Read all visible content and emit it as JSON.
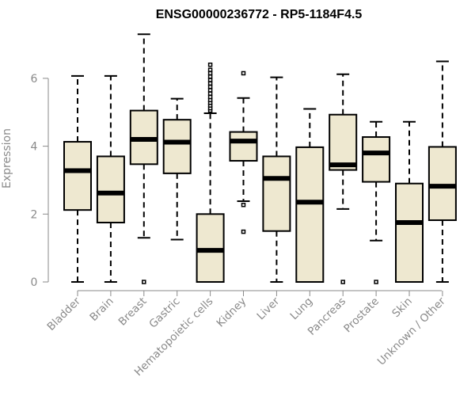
{
  "chart_data": {
    "type": "box",
    "title": "ENSG00000236772 - RP5-1184F4.5",
    "xlabel": "",
    "ylabel": "Expression",
    "ylim": [
      0,
      7.3
    ],
    "yticks": [
      0,
      2,
      4,
      6
    ],
    "grid": false,
    "box_color": "#EEE8D0",
    "axis_color": "#8a8a8a",
    "categories": [
      "Bladder",
      "Brain",
      "Breast",
      "Gastric",
      "Hematopoietic cells",
      "Kidney",
      "Liver",
      "Lung",
      "Pancreas",
      "Prostate",
      "Skin",
      "Unknown / Other"
    ],
    "boxes": [
      {
        "min": 0.0,
        "q1": 2.12,
        "median": 3.28,
        "q3": 4.13,
        "max": 6.07,
        "outliers": []
      },
      {
        "min": 0.0,
        "q1": 1.75,
        "median": 2.62,
        "q3": 3.7,
        "max": 6.07,
        "outliers": []
      },
      {
        "min": 1.3,
        "q1": 3.47,
        "median": 4.2,
        "q3": 5.05,
        "max": 7.3,
        "outliers": [
          0.0
        ]
      },
      {
        "min": 1.25,
        "q1": 3.2,
        "median": 4.12,
        "q3": 4.78,
        "max": 5.4,
        "outliers": []
      },
      {
        "min": 0.0,
        "q1": 0.0,
        "median": 0.93,
        "q3": 2.0,
        "max": 4.97,
        "outliers": [
          5.05,
          5.12,
          5.2,
          5.28,
          5.36,
          5.45,
          5.55,
          5.65,
          5.75,
          5.85,
          5.95,
          6.05,
          6.15,
          6.25,
          6.4
        ]
      },
      {
        "min": 2.38,
        "q1": 3.57,
        "median": 4.15,
        "q3": 4.42,
        "max": 5.42,
        "outliers": [
          6.15,
          2.27,
          1.48
        ]
      },
      {
        "min": 0.0,
        "q1": 1.5,
        "median": 3.05,
        "q3": 3.7,
        "max": 6.03,
        "outliers": []
      },
      {
        "min": 0.0,
        "q1": 0.0,
        "median": 2.35,
        "q3": 3.97,
        "max": 5.1,
        "outliers": []
      },
      {
        "min": 2.15,
        "q1": 3.3,
        "median": 3.45,
        "q3": 4.93,
        "max": 6.12,
        "outliers": [
          0.0
        ]
      },
      {
        "min": 1.22,
        "q1": 2.95,
        "median": 3.8,
        "q3": 4.27,
        "max": 4.72,
        "outliers": [
          0.0
        ]
      },
      {
        "min": 0.0,
        "q1": 0.0,
        "median": 1.75,
        "q3": 2.9,
        "max": 4.72,
        "outliers": []
      },
      {
        "min": 0.0,
        "q1": 1.82,
        "median": 2.82,
        "q3": 3.98,
        "max": 6.5,
        "outliers": []
      }
    ]
  }
}
